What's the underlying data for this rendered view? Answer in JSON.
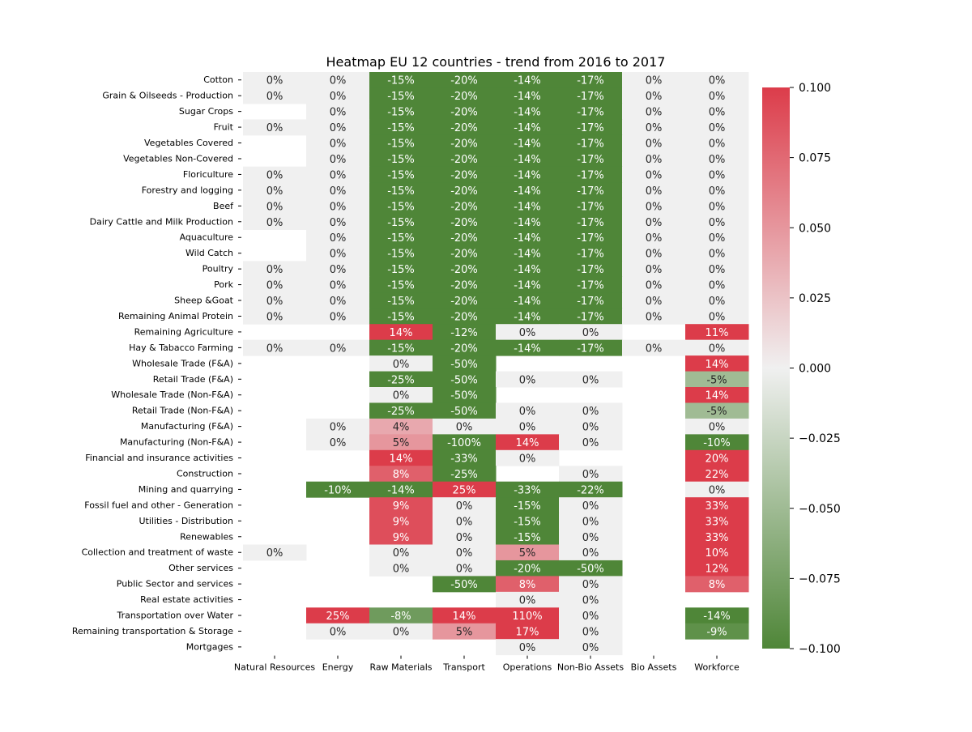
{
  "chart_data": {
    "type": "heatmap",
    "title": "Heatmap EU 12 countries - trend from 2016 to 2017",
    "columns": [
      "Natural Resources",
      "Energy",
      "Raw Materials",
      "Transport",
      "Operations",
      "Non-Bio Assets",
      "Bio Assets",
      "Workforce"
    ],
    "rows": [
      "Cotton",
      "Grain & Oilseeds - Production",
      "Sugar Crops",
      "Fruit",
      "Vegetables Covered",
      "Vegetables Non-Covered",
      "Floriculture",
      "Forestry and logging",
      "Beef",
      "Dairy Cattle and Milk Production",
      "Aquaculture",
      "Wild Catch",
      "Poultry",
      "Pork",
      "Sheep &Goat",
      "Remaining Animal Protein",
      "Remaining Agriculture",
      "Hay & Tabacco Farming",
      "Wholesale Trade (F&A)",
      "Retail Trade (F&A)",
      "Wholesale Trade (Non-F&A)",
      "Retail Trade (Non-F&A)",
      "Manufacturing (F&A)",
      "Manufacturing (Non-F&A)",
      "Financial and insurance activities",
      "Construction",
      "Mining and quarrying",
      "Fossil fuel and other - Generation",
      "Utilities - Distribution",
      "Renewables",
      "Collection and treatment of waste",
      "Other services",
      "Public Sector and services",
      "Real estate activities",
      "Transportation over Water",
      "Remaining transportation & Storage",
      "Mortgages"
    ],
    "values": [
      [
        0,
        0,
        -0.15,
        -0.2,
        -0.14,
        -0.17,
        0,
        0
      ],
      [
        0,
        0,
        -0.15,
        -0.2,
        -0.14,
        -0.17,
        0,
        0
      ],
      [
        null,
        0,
        -0.15,
        -0.2,
        -0.14,
        -0.17,
        0,
        0
      ],
      [
        0,
        0,
        -0.15,
        -0.2,
        -0.14,
        -0.17,
        0,
        0
      ],
      [
        null,
        0,
        -0.15,
        -0.2,
        -0.14,
        -0.17,
        0,
        0
      ],
      [
        null,
        0,
        -0.15,
        -0.2,
        -0.14,
        -0.17,
        0,
        0
      ],
      [
        0,
        0,
        -0.15,
        -0.2,
        -0.14,
        -0.17,
        0,
        0
      ],
      [
        0,
        0,
        -0.15,
        -0.2,
        -0.14,
        -0.17,
        0,
        0
      ],
      [
        0,
        0,
        -0.15,
        -0.2,
        -0.14,
        -0.17,
        0,
        0
      ],
      [
        0,
        0,
        -0.15,
        -0.2,
        -0.14,
        -0.17,
        0,
        0
      ],
      [
        null,
        0,
        -0.15,
        -0.2,
        -0.14,
        -0.17,
        0,
        0
      ],
      [
        null,
        0,
        -0.15,
        -0.2,
        -0.14,
        -0.17,
        0,
        0
      ],
      [
        0,
        0,
        -0.15,
        -0.2,
        -0.14,
        -0.17,
        0,
        0
      ],
      [
        0,
        0,
        -0.15,
        -0.2,
        -0.14,
        -0.17,
        0,
        0
      ],
      [
        0,
        0,
        -0.15,
        -0.2,
        -0.14,
        -0.17,
        0,
        0
      ],
      [
        0,
        0,
        -0.15,
        -0.2,
        -0.14,
        -0.17,
        0,
        0
      ],
      [
        null,
        null,
        0.14,
        -0.12,
        0,
        0,
        null,
        0.11
      ],
      [
        0,
        0,
        -0.15,
        -0.2,
        -0.14,
        -0.17,
        0,
        0
      ],
      [
        null,
        null,
        0,
        -0.5,
        null,
        null,
        null,
        0.14
      ],
      [
        null,
        null,
        -0.25,
        -0.5,
        0,
        0,
        null,
        -0.05
      ],
      [
        null,
        null,
        0,
        -0.5,
        null,
        null,
        null,
        0.14
      ],
      [
        null,
        null,
        -0.25,
        -0.5,
        0,
        0,
        null,
        -0.05
      ],
      [
        null,
        0,
        0.04,
        0,
        0,
        0,
        null,
        0
      ],
      [
        null,
        0,
        0.05,
        -1.0,
        0.14,
        0,
        null,
        -0.1
      ],
      [
        null,
        null,
        0.14,
        -0.33,
        0,
        null,
        null,
        0.2
      ],
      [
        null,
        null,
        0.08,
        -0.25,
        null,
        0,
        null,
        0.22
      ],
      [
        null,
        -0.1,
        -0.14,
        0.25,
        -0.33,
        -0.22,
        null,
        0
      ],
      [
        null,
        null,
        0.09,
        0,
        -0.15,
        0,
        null,
        0.33
      ],
      [
        null,
        null,
        0.09,
        0,
        -0.15,
        0,
        null,
        0.33
      ],
      [
        null,
        null,
        0.09,
        0,
        -0.15,
        0,
        null,
        0.33
      ],
      [
        0,
        null,
        0,
        0,
        0.05,
        0,
        null,
        0.1
      ],
      [
        null,
        null,
        0,
        0,
        -0.2,
        -0.5,
        null,
        0.12
      ],
      [
        null,
        null,
        null,
        -0.5,
        0.08,
        0,
        null,
        0.08
      ],
      [
        null,
        null,
        null,
        null,
        0,
        0,
        null,
        null
      ],
      [
        null,
        0.25,
        -0.08,
        0.14,
        1.1,
        0,
        null,
        -0.14
      ],
      [
        null,
        0,
        0,
        0.05,
        0.17,
        0,
        null,
        -0.09
      ],
      [
        null,
        null,
        null,
        null,
        0,
        0,
        null,
        null
      ]
    ],
    "colorbar": {
      "min": -0.1,
      "max": 0.1,
      "ticks": [
        "0.100",
        "0.075",
        "0.050",
        "0.025",
        "0.000",
        "−0.025",
        "−0.050",
        "−0.075",
        "−0.100"
      ],
      "tick_values": [
        0.1,
        0.075,
        0.05,
        0.025,
        0,
        -0.025,
        -0.05,
        -0.075,
        -0.1
      ]
    },
    "colors": {
      "negative": "#4f8638",
      "neutral": "#f0f0f0",
      "positive": "#dc3c4a"
    }
  }
}
